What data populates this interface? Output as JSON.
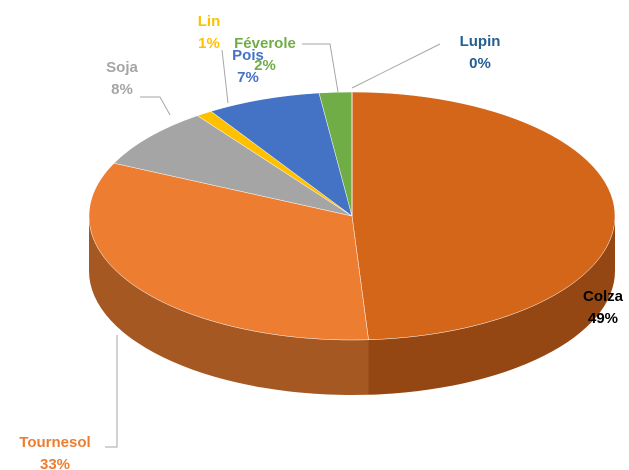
{
  "chart_data": {
    "type": "pie",
    "categories": [
      "Colza",
      "Tournesol",
      "Soja",
      "Lin",
      "Pois",
      "Féverole",
      "Lupin"
    ],
    "values": [
      49,
      33,
      8,
      1,
      7,
      2,
      0
    ],
    "value_labels": [
      "49%",
      "33%",
      "8%",
      "1%",
      "7%",
      "2%",
      "0%"
    ],
    "colors": [
      "#d4661a",
      "#ed7d31",
      "#a5a5a5",
      "#ffc000",
      "#4472c4",
      "#70ad47",
      "#255e91"
    ]
  }
}
